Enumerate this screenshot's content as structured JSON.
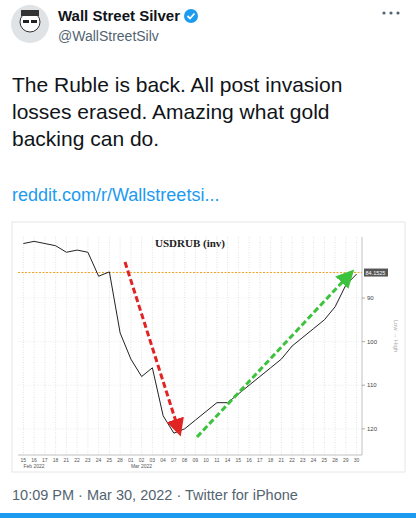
{
  "tweet": {
    "author": "Wall Street Silver",
    "handle": "@WallStreetSilv",
    "text": [
      "The Ruble is back. All post invasion",
      "losses erased. Amazing what gold",
      "backing can do."
    ],
    "link": "reddit.com/r/Wallstreetsi...",
    "footer": "10:09 PM · Mar 30, 2022 · Twitter for iPhone"
  },
  "chart_data": {
    "type": "line",
    "title": "USDRUB (inv)",
    "categories": [
      "15",
      "16",
      "17",
      "18",
      "21",
      "22",
      "23",
      "24",
      "25",
      "28",
      "01",
      "02",
      "03",
      "04",
      "07",
      "08",
      "09",
      "10",
      "11",
      "14",
      "15",
      "16",
      "17",
      "18",
      "21",
      "22",
      "23",
      "24",
      "25",
      "28",
      "29",
      "30"
    ],
    "x_groups": [
      {
        "label": "Feb 2022",
        "start": 0
      },
      {
        "label": "Mar 2022",
        "start": 10
      }
    ],
    "values": [
      77.5,
      77,
      77.5,
      78,
      79.5,
      79,
      79.5,
      85,
      84,
      98,
      104,
      108,
      106,
      117,
      121,
      120,
      118,
      116,
      114,
      114,
      112,
      110,
      108,
      106,
      104,
      101,
      99,
      97,
      95,
      92,
      87,
      84.5
    ],
    "color": "#222222",
    "ylim": [
      126,
      76
    ],
    "yticks": [
      90,
      100,
      110,
      120
    ],
    "grid": true,
    "reference_value": 84.1525,
    "ylabel": "Low → High"
  }
}
